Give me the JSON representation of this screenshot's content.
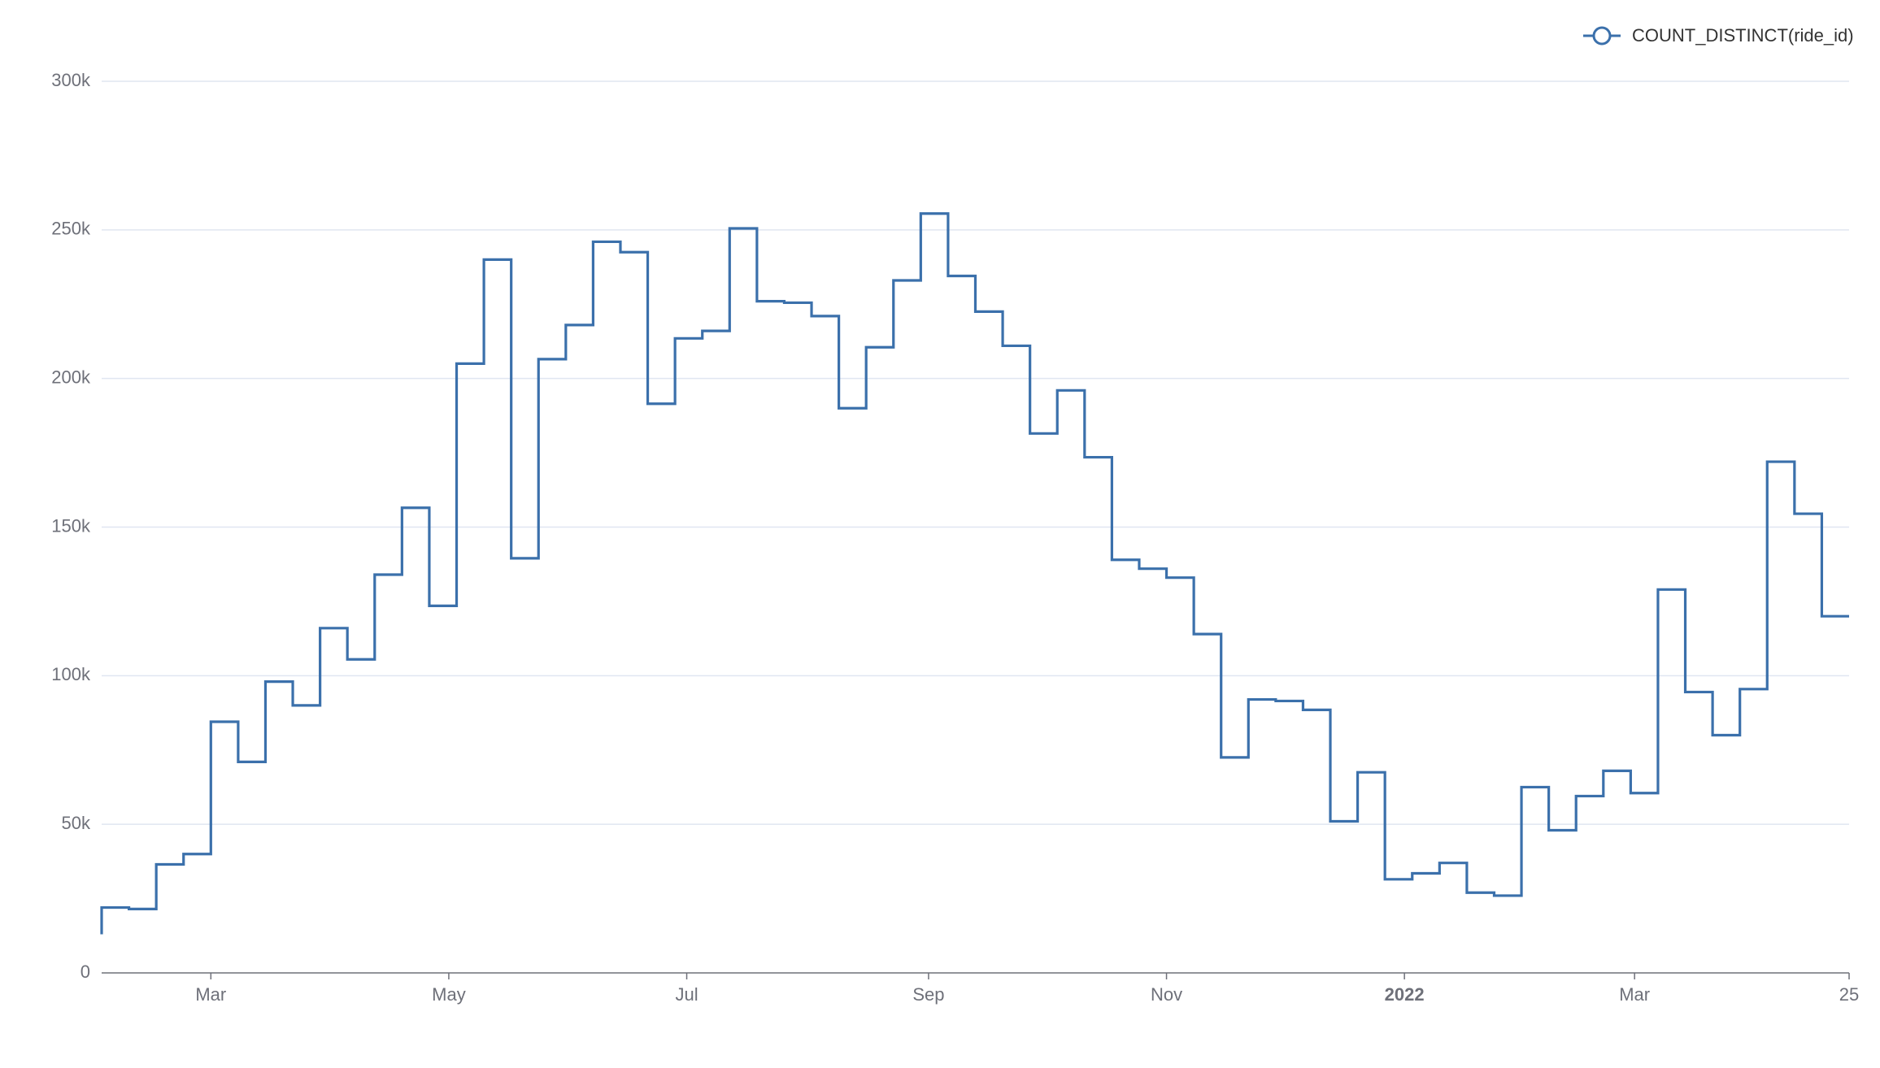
{
  "chart_data": {
    "type": "line",
    "step": "start",
    "x": [
      "2021-02-01",
      "2021-02-08",
      "2021-02-15",
      "2021-02-22",
      "2021-03-01",
      "2021-03-08",
      "2021-03-15",
      "2021-03-22",
      "2021-03-29",
      "2021-04-05",
      "2021-04-12",
      "2021-04-19",
      "2021-04-26",
      "2021-05-03",
      "2021-05-10",
      "2021-05-17",
      "2021-05-24",
      "2021-05-31",
      "2021-06-07",
      "2021-06-14",
      "2021-06-21",
      "2021-06-28",
      "2021-07-05",
      "2021-07-12",
      "2021-07-19",
      "2021-07-26",
      "2021-08-02",
      "2021-08-09",
      "2021-08-16",
      "2021-08-23",
      "2021-08-30",
      "2021-09-06",
      "2021-09-13",
      "2021-09-20",
      "2021-09-27",
      "2021-10-04",
      "2021-10-11",
      "2021-10-18",
      "2021-10-25",
      "2021-11-01",
      "2021-11-08",
      "2021-11-15",
      "2021-11-22",
      "2021-11-29",
      "2021-12-06",
      "2021-12-13",
      "2021-12-20",
      "2021-12-27",
      "2022-01-03",
      "2022-01-10",
      "2022-01-17",
      "2022-01-24",
      "2022-01-31",
      "2022-02-07",
      "2022-02-14",
      "2022-02-21",
      "2022-02-28",
      "2022-03-07",
      "2022-03-14",
      "2022-03-21",
      "2022-03-28",
      "2022-04-04",
      "2022-04-11",
      "2022-04-18",
      "2022-04-25"
    ],
    "series": [
      {
        "name": "COUNT_DISTINCT(ride_id)",
        "color": "#3b70ab",
        "values": [
          13000,
          22000,
          21500,
          36500,
          40000,
          84500,
          71000,
          98000,
          90000,
          116000,
          105500,
          134000,
          156500,
          123500,
          205000,
          240000,
          139500,
          206500,
          218000,
          246000,
          242500,
          191500,
          213500,
          216000,
          250500,
          226000,
          225500,
          221000,
          190000,
          210500,
          233000,
          255500,
          234500,
          222500,
          211000,
          181500,
          196000,
          173500,
          139000,
          136000,
          133000,
          114000,
          72500,
          92000,
          91500,
          88500,
          51000,
          67500,
          31500,
          33500,
          37000,
          27000,
          26000,
          62500,
          48000,
          59500,
          68000,
          60500,
          129000,
          94500,
          80000,
          95500,
          172000,
          154500,
          120000
        ]
      }
    ],
    "xlim": [
      "2021-02-01",
      "2022-04-25"
    ],
    "xticks": [
      {
        "value": "2021-03-01",
        "label": "Mar"
      },
      {
        "value": "2021-05-01",
        "label": "May"
      },
      {
        "value": "2021-07-01",
        "label": "Jul"
      },
      {
        "value": "2021-09-01",
        "label": "Sep"
      },
      {
        "value": "2021-11-01",
        "label": "Nov"
      },
      {
        "value": "2022-01-01",
        "label": "2022"
      },
      {
        "value": "2022-03-01",
        "label": "Mar"
      },
      {
        "value": "2022-04-25",
        "label": "25"
      }
    ],
    "ylim": [
      0,
      300000
    ],
    "yticks": [
      {
        "value": 0,
        "label": "0"
      },
      {
        "value": 50000,
        "label": "50k"
      },
      {
        "value": 100000,
        "label": "100k"
      },
      {
        "value": 150000,
        "label": "150k"
      },
      {
        "value": 200000,
        "label": "200k"
      },
      {
        "value": 250000,
        "label": "250k"
      },
      {
        "value": 300000,
        "label": "300k"
      }
    ],
    "grid": true,
    "legend": "top-right"
  }
}
